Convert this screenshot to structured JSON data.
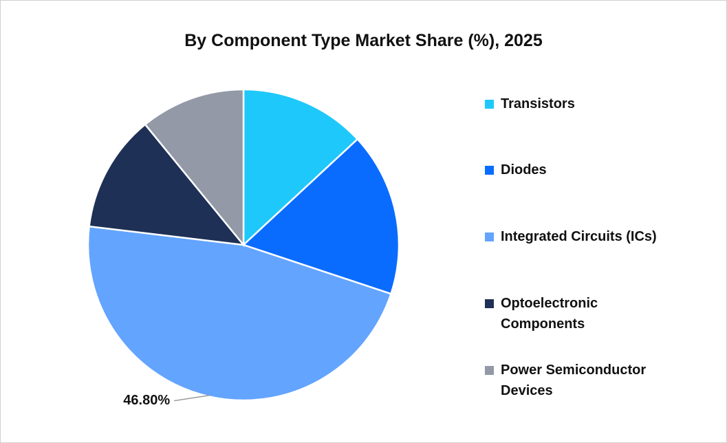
{
  "chart_data": {
    "type": "pie",
    "title": "By Component Type Market Share (%), 2025",
    "categories": [
      "Transistors",
      "Diodes",
      "Integrated Circuits (ICs)",
      "Optoelectronic Components",
      "Power Semiconductor Devices"
    ],
    "values": [
      13.1,
      17.0,
      46.8,
      12.2,
      10.9
    ],
    "value_labels": [
      null,
      null,
      "46.80%",
      null,
      null
    ],
    "colors": [
      "#1ec8fa",
      "#0a6cff",
      "#63a4ff",
      "#1e3056",
      "#9399a6"
    ],
    "legend": "right"
  }
}
